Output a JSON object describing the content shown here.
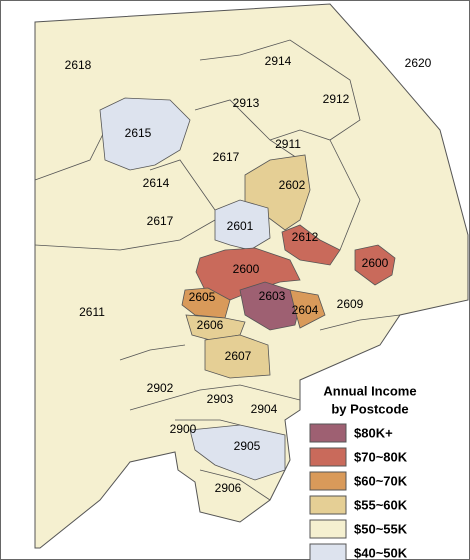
{
  "map": {
    "land_color": "#f5f0d0",
    "regions": [
      {
        "label": "2618",
        "color": "#f5f0d0"
      },
      {
        "label": "2914",
        "color": "#f5f0d0"
      },
      {
        "label": "2620",
        "color": "#f5f0d0"
      },
      {
        "label": "2913",
        "color": "#f5f0d0"
      },
      {
        "label": "2912",
        "color": "#f5f0d0"
      },
      {
        "label": "2615",
        "color": "#dde3ee"
      },
      {
        "label": "2911",
        "color": "#f5f0d0"
      },
      {
        "label": "2617",
        "color": "#f5f0d0"
      },
      {
        "label": "2614",
        "color": "#f5f0d0"
      },
      {
        "label": "2602",
        "color": "#e5cf95"
      },
      {
        "label": "2617",
        "color": "#f5f0d0"
      },
      {
        "label": "2601",
        "color": "#dde3ee"
      },
      {
        "label": "2612",
        "color": "#c96a5b"
      },
      {
        "label": "2600",
        "color": "#c96a5b"
      },
      {
        "label": "2600",
        "color": "#c96a5b"
      },
      {
        "label": "2605",
        "color": "#d99a5a"
      },
      {
        "label": "2603",
        "color": "#9e6072"
      },
      {
        "label": "2604",
        "color": "#d99a5a"
      },
      {
        "label": "2609",
        "color": "#f5f0d0"
      },
      {
        "label": "2611",
        "color": "#f5f0d0"
      },
      {
        "label": "2606",
        "color": "#e5cf95"
      },
      {
        "label": "2607",
        "color": "#e5cf95"
      },
      {
        "label": "2902",
        "color": "#f5f0d0"
      },
      {
        "label": "2903",
        "color": "#f5f0d0"
      },
      {
        "label": "2904",
        "color": "#f5f0d0"
      },
      {
        "label": "2900",
        "color": "#f5f0d0"
      },
      {
        "label": "2905",
        "color": "#dde3ee"
      },
      {
        "label": "2906",
        "color": "#f5f0d0"
      }
    ]
  },
  "legend": {
    "title": [
      "Annual Income",
      "by Postcode"
    ],
    "items": [
      {
        "label": "$80K+",
        "color": "#9e6072"
      },
      {
        "label": "$70~80K",
        "color": "#c96a5b"
      },
      {
        "label": "$60~70K",
        "color": "#d99a5a"
      },
      {
        "label": "$55~60K",
        "color": "#e5cf95"
      },
      {
        "label": "$50~55K",
        "color": "#f5f0d0"
      },
      {
        "label": "$40~50K",
        "color": "#dde3ee"
      }
    ]
  }
}
